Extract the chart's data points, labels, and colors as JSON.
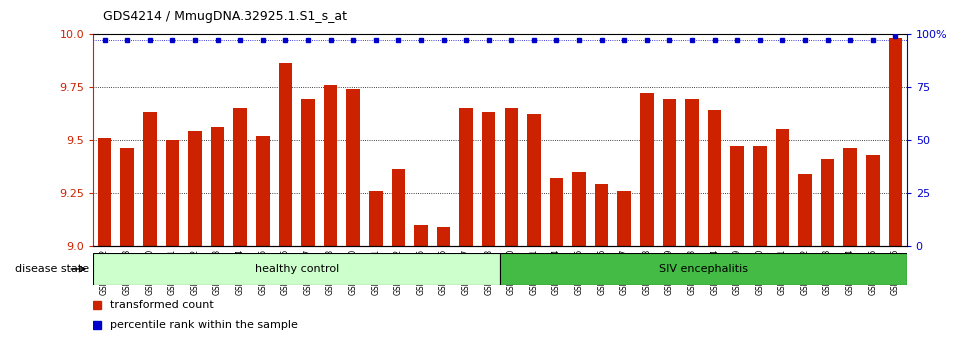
{
  "title": "GDS4214 / MmugDNA.32925.1.S1_s_at",
  "samples": [
    "GSM347802",
    "GSM347803",
    "GSM347810",
    "GSM347811",
    "GSM347812",
    "GSM347813",
    "GSM347814",
    "GSM347815",
    "GSM347816",
    "GSM347817",
    "GSM347818",
    "GSM347820",
    "GSM347821",
    "GSM347822",
    "GSM347825",
    "GSM347826",
    "GSM347827",
    "GSM347828",
    "GSM347800",
    "GSM347801",
    "GSM347804",
    "GSM347805",
    "GSM347806",
    "GSM347807",
    "GSM347808",
    "GSM347809",
    "GSM347823",
    "GSM347824",
    "GSM347829",
    "GSM347830",
    "GSM347831",
    "GSM347832",
    "GSM347833",
    "GSM347834",
    "GSM347835",
    "GSM347836"
  ],
  "bar_values": [
    9.51,
    9.46,
    9.63,
    9.5,
    9.54,
    9.56,
    9.65,
    9.52,
    9.86,
    9.69,
    9.76,
    9.74,
    9.26,
    9.36,
    9.1,
    9.09,
    9.65,
    9.63,
    9.65,
    9.62,
    9.32,
    9.35,
    9.29,
    9.26,
    9.72,
    9.69,
    9.69,
    9.64,
    9.47,
    9.47,
    9.55,
    9.34,
    9.41,
    9.46,
    9.43,
    9.98
  ],
  "percentile_values": [
    97,
    97,
    97,
    97,
    97,
    97,
    97,
    97,
    97,
    97,
    97,
    97,
    97,
    97,
    97,
    97,
    97,
    97,
    97,
    97,
    97,
    97,
    97,
    97,
    97,
    97,
    97,
    97,
    97,
    97,
    97,
    97,
    97,
    97,
    97,
    99
  ],
  "healthy_control_count": 18,
  "ylim_left": [
    9.0,
    10.0
  ],
  "ylim_right": [
    0,
    100
  ],
  "bar_color": "#cc2200",
  "percentile_color": "#0000cc",
  "healthy_color": "#ccffcc",
  "siv_color": "#44bb44",
  "bg_color": "#ffffff",
  "label_color_left": "#cc2200",
  "label_color_right": "#0000cc",
  "yticks_left": [
    9.0,
    9.25,
    9.5,
    9.75,
    10.0
  ],
  "yticks_right": [
    0,
    25,
    50,
    75,
    100
  ]
}
